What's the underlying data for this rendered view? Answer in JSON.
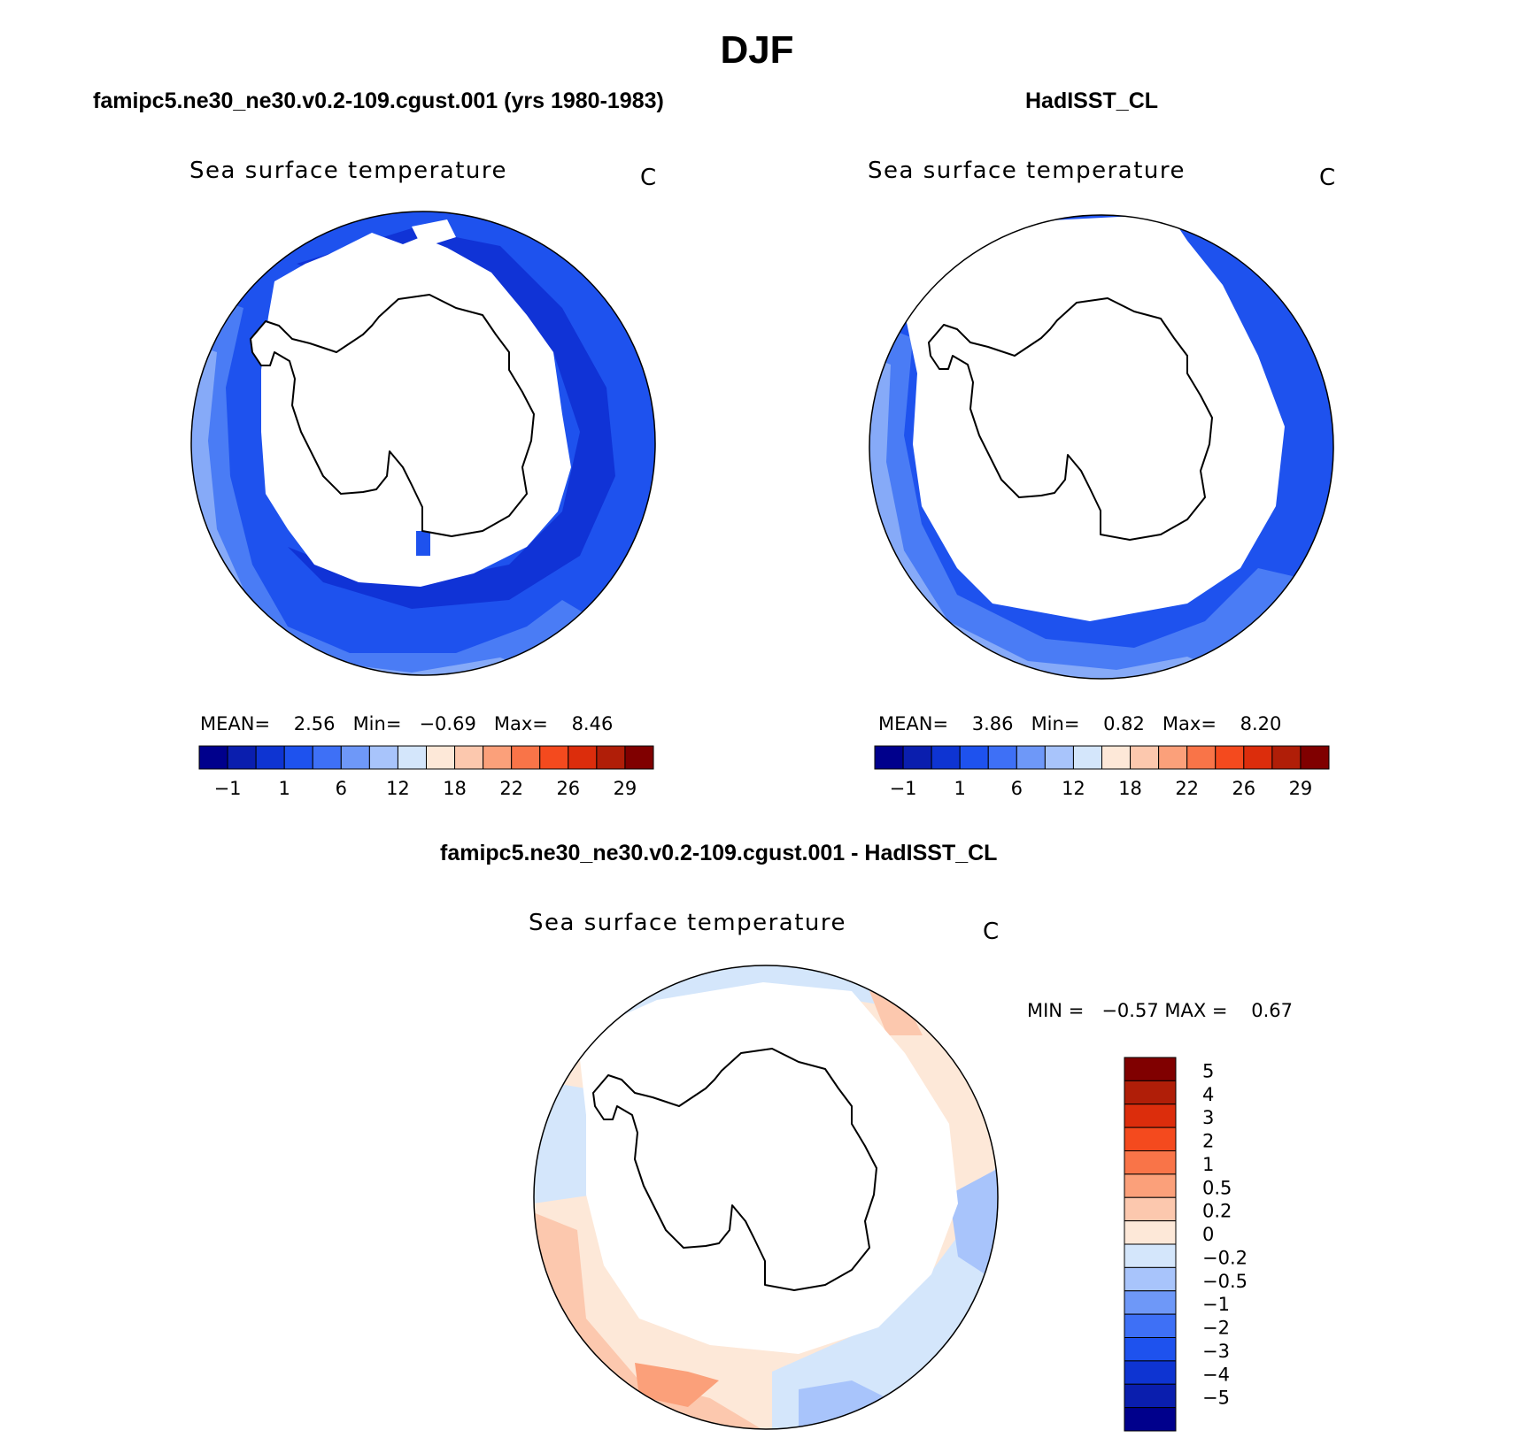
{
  "page_title": "DJF",
  "colors": {
    "ocean_cold_dark": "#1033d6",
    "ocean_mid": "#1e52ee",
    "ocean_light": "#4a7cf5",
    "ocean_lighter": "#86aaf8",
    "land_ice": "#ffffff",
    "diff_pos": "#f8c8ad",
    "diff_pos_strong": "#f59a76",
    "diff_neg": "#cfe0fb",
    "diff_neg_strong": "#9fbcf7",
    "outline": "#000000"
  },
  "chart_data": [
    {
      "type": "polar-contour-map",
      "id": "model",
      "case_title": "famipc5.ne30_ne30.v0.2-109.cgust.001 (yrs 1980-1983)",
      "title": "Sea surface temperature",
      "units": "C",
      "stats": {
        "mean_label": "MEAN=",
        "mean": "2.56",
        "min_label": "Min=",
        "min": "−0.69",
        "max_label": "Max=",
        "max": "8.46"
      },
      "colorbar": {
        "orientation": "horizontal",
        "colors": [
          "#00008c",
          "#0a1eae",
          "#0e34d2",
          "#1e52ee",
          "#3e70f6",
          "#6e98f8",
          "#a8c4fb",
          "#d4e6fb",
          "#fde8d8",
          "#fcc8ae",
          "#fba07a",
          "#f97448",
          "#f44a1e",
          "#dc2d0c",
          "#b01e08",
          "#800000"
        ],
        "tick_labels": [
          "−1",
          "1",
          "6",
          "12",
          "18",
          "22",
          "26",
          "29"
        ]
      }
    },
    {
      "type": "polar-contour-map",
      "id": "obs",
      "case_title": "HadISST_CL",
      "title": "Sea surface temperature",
      "units": "C",
      "stats": {
        "mean_label": "MEAN=",
        "mean": "3.86",
        "min_label": "Min=",
        "min": "0.82",
        "max_label": "Max=",
        "max": "8.20"
      },
      "colorbar": {
        "orientation": "horizontal",
        "colors": [
          "#00008c",
          "#0a1eae",
          "#0e34d2",
          "#1e52ee",
          "#3e70f6",
          "#6e98f8",
          "#a8c4fb",
          "#d4e6fb",
          "#fde8d8",
          "#fcc8ae",
          "#fba07a",
          "#f97448",
          "#f44a1e",
          "#dc2d0c",
          "#b01e08",
          "#800000"
        ],
        "tick_labels": [
          "−1",
          "1",
          "6",
          "12",
          "18",
          "22",
          "26",
          "29"
        ]
      }
    },
    {
      "type": "polar-contour-map",
      "id": "diff",
      "case_title": "famipc5.ne30_ne30.v0.2-109.cgust.001 - HadISST_CL",
      "title": "Sea surface temperature",
      "units": "C",
      "stats": {
        "min_label": "MIN =",
        "min": "−0.57",
        "max_label": "MAX =",
        "max": "0.67"
      },
      "colorbar": {
        "orientation": "vertical",
        "colors": [
          "#800000",
          "#b01e08",
          "#dc2d0c",
          "#f44a1e",
          "#f97448",
          "#fba07a",
          "#fcc8ae",
          "#fde8d8",
          "#d4e6fb",
          "#a8c4fb",
          "#6e98f8",
          "#3e70f6",
          "#1e52ee",
          "#0e34d2",
          "#0a1eae",
          "#00008c"
        ],
        "tick_labels": [
          "5",
          "4",
          "3",
          "2",
          "1",
          "0.5",
          "0.2",
          "0",
          "−0.2",
          "−0.5",
          "−1",
          "−2",
          "−3",
          "−4",
          "−5"
        ]
      }
    }
  ]
}
